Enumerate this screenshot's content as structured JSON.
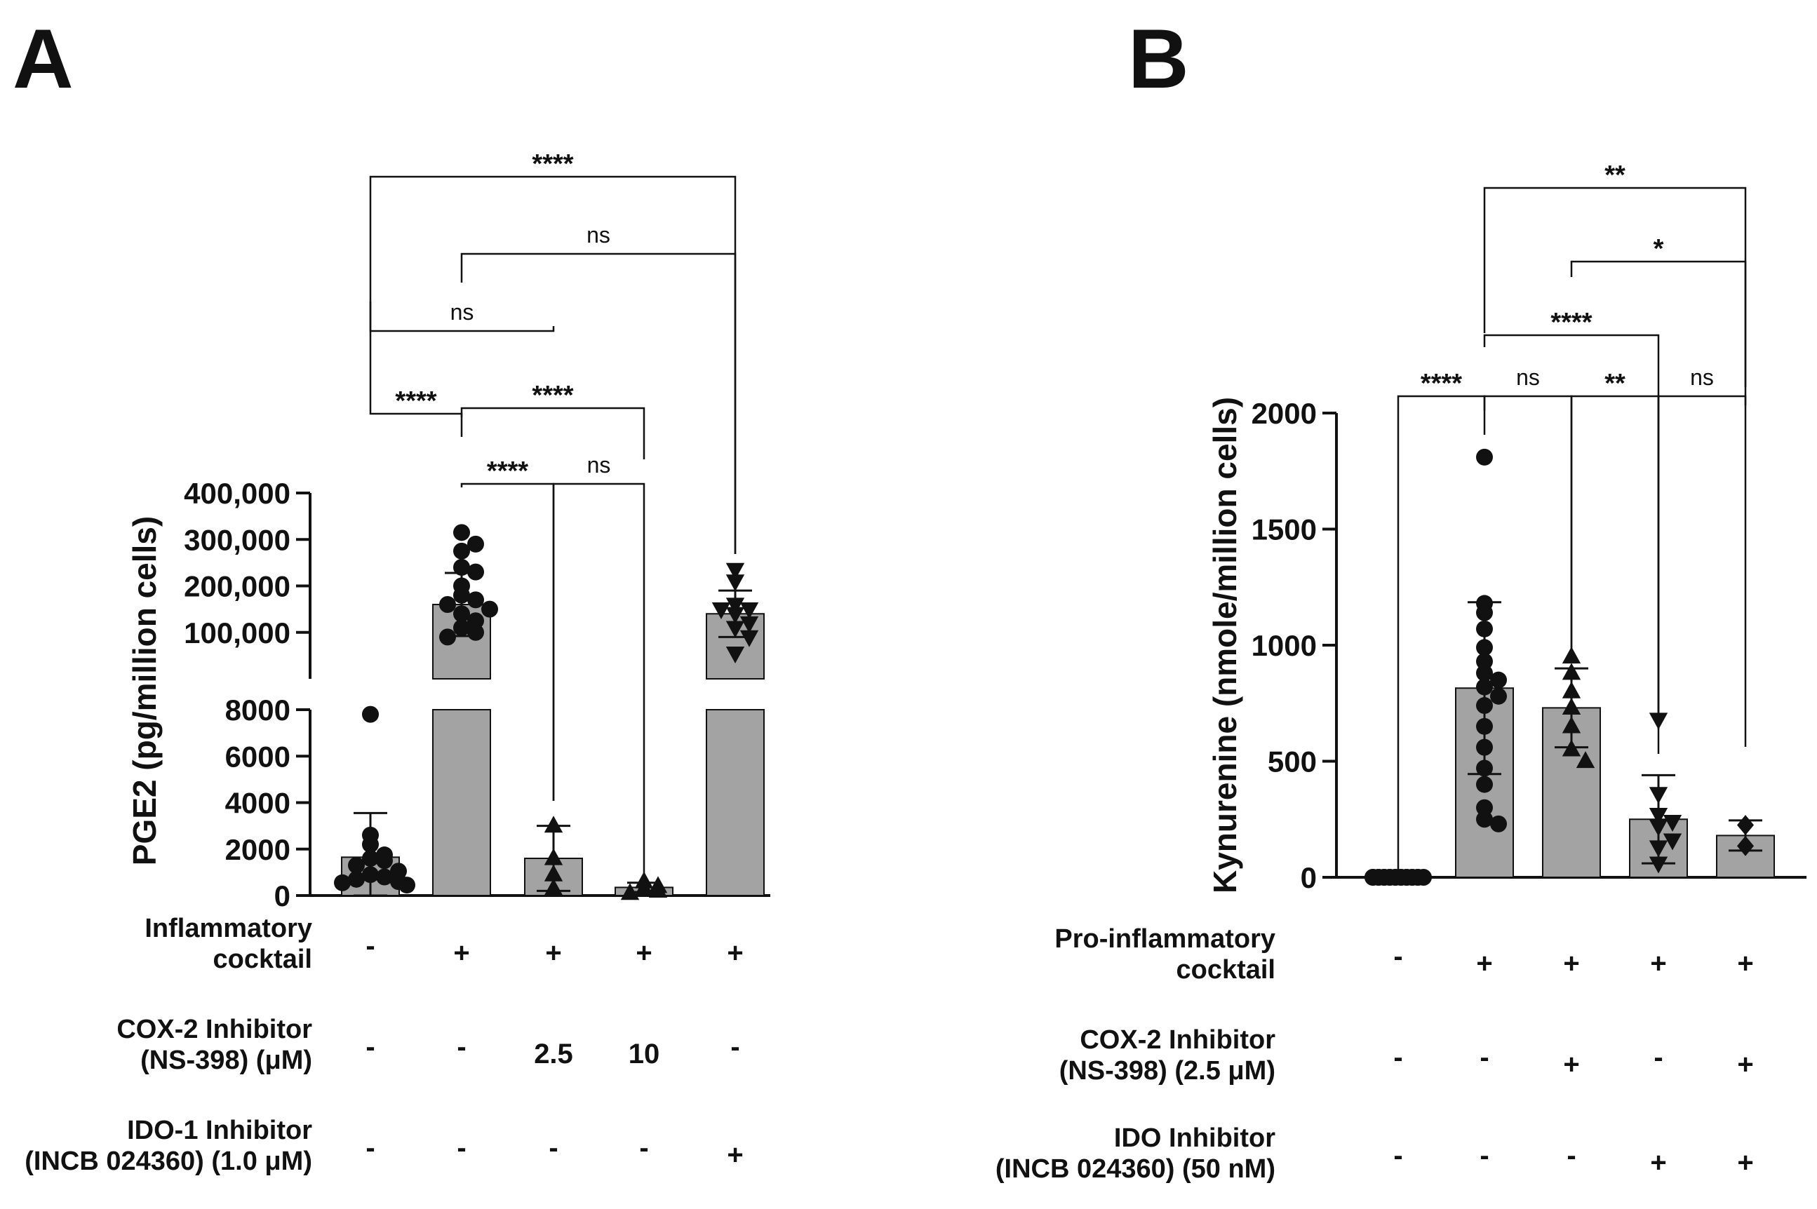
{
  "figure": {
    "colors": {
      "bar": "#a3a3a3",
      "ink": "#111111",
      "background": "#ffffff"
    }
  },
  "chart_data": [
    {
      "panel": "A",
      "type": "bar",
      "ylabel": "PGE2 (pg/million cells)",
      "y_axis_segments": [
        {
          "range": [
            0,
            8000
          ],
          "ticks": [
            0,
            2000,
            4000,
            6000,
            8000
          ],
          "tick_labels": [
            "0",
            "2000",
            "4000",
            "6000",
            "8000"
          ]
        },
        {
          "range": [
            0,
            400000
          ],
          "ticks": [
            100000,
            200000,
            300000,
            400000
          ],
          "tick_labels": [
            "100,000",
            "200,000",
            "300,000",
            "400,000"
          ]
        }
      ],
      "groups": [
        {
          "mean": 1650,
          "sd": 1900,
          "marker": "circle",
          "points": [
            7800,
            2600,
            2200,
            1750,
            1600,
            1500,
            1300,
            1050,
            900,
            800,
            700,
            600,
            550,
            450
          ]
        },
        {
          "mean": 160000,
          "sd": 68000,
          "marker": "circle",
          "points": [
            315000,
            290000,
            275000,
            240000,
            230000,
            200000,
            180000,
            170000,
            160000,
            150000,
            140000,
            125000,
            110000,
            100000,
            90000
          ]
        },
        {
          "mean": 1600,
          "sd": 1400,
          "marker": "triangle-up",
          "points": [
            3000,
            1600,
            900,
            300
          ]
        },
        {
          "mean": 350,
          "sd": 200,
          "marker": "triangle-up",
          "points": [
            600,
            400,
            300,
            200,
            100
          ]
        },
        {
          "mean": 140000,
          "sd": 50000,
          "marker": "triangle-down",
          "points": [
            235000,
            210000,
            160000,
            150000,
            150000,
            140000,
            120000,
            110000,
            90000,
            55000
          ]
        }
      ],
      "comparisons": [
        {
          "from": 1,
          "to": 2,
          "label": "****"
        },
        {
          "from": 2,
          "to": 3,
          "label": "****"
        },
        {
          "from": 3,
          "to": 4,
          "label": "ns"
        },
        {
          "from": 2,
          "to": 4,
          "label": "****"
        },
        {
          "from": 1,
          "to": 3,
          "label": "ns"
        },
        {
          "from": 2,
          "to": 5,
          "label": "ns"
        },
        {
          "from": 1,
          "to": 5,
          "label": "****"
        }
      ],
      "conditions": [
        {
          "label_lines": [
            "Inflammatory",
            "cocktail"
          ],
          "values": [
            "-",
            "+",
            "+",
            "+",
            "+"
          ]
        },
        {
          "label_lines": [
            "COX-2 Inhibitor",
            "(NS-398) (μM)"
          ],
          "values": [
            "-",
            "-",
            "2.5",
            "10",
            "-"
          ]
        },
        {
          "label_lines": [
            "IDO-1 Inhibitor",
            "(INCB 024360) (1.0 μM)"
          ],
          "values": [
            "-",
            "-",
            "-",
            "-",
            "+"
          ]
        }
      ]
    },
    {
      "panel": "B",
      "type": "bar",
      "ylabel": "Kynurenine (nmole/million cells)",
      "ylim": [
        0,
        2000
      ],
      "ticks": [
        0,
        500,
        1000,
        1500,
        2000
      ],
      "tick_labels": [
        "0",
        "500",
        "1000",
        "1500",
        "2000"
      ],
      "groups": [
        {
          "mean": 0,
          "sd": 0,
          "marker": "circle",
          "points": [
            0,
            0,
            0,
            0,
            0,
            0,
            0,
            0,
            0,
            0,
            0,
            0,
            0,
            0,
            0,
            0,
            0,
            0,
            0
          ]
        },
        {
          "mean": 815,
          "sd": 370,
          "marker": "circle",
          "points": [
            1810,
            1180,
            1140,
            1070,
            990,
            930,
            880,
            850,
            820,
            780,
            740,
            650,
            560,
            470,
            400,
            300,
            250,
            230
          ]
        },
        {
          "mean": 730,
          "sd": 170,
          "marker": "triangle-up",
          "points": [
            950,
            880,
            800,
            730,
            650,
            550,
            500
          ]
        },
        {
          "mean": 250,
          "sd": 190,
          "marker": "triangle-down",
          "points": [
            680,
            360,
            270,
            240,
            220,
            160,
            130,
            60
          ]
        },
        {
          "mean": 180,
          "sd": 65,
          "marker": "diamond",
          "points": [
            225,
            135
          ]
        }
      ],
      "comparisons": [
        {
          "from": 1,
          "to": 2,
          "label": "****"
        },
        {
          "from": 2,
          "to": 3,
          "label": "ns"
        },
        {
          "from": 3,
          "to": 4,
          "label": "**"
        },
        {
          "from": 4,
          "to": 5,
          "label": "ns"
        },
        {
          "from": 2,
          "to": 4,
          "label": "****"
        },
        {
          "from": 3,
          "to": 5,
          "label": "*"
        },
        {
          "from": 2,
          "to": 5,
          "label": "**"
        }
      ],
      "conditions": [
        {
          "label_lines": [
            "Pro-inflammatory",
            "cocktail"
          ],
          "values": [
            "-",
            "+",
            "+",
            "+",
            "+"
          ]
        },
        {
          "label_lines": [
            "COX-2  Inhibitor",
            "(NS-398) (2.5 μM)"
          ],
          "values": [
            "-",
            "-",
            "+",
            "-",
            "+"
          ]
        },
        {
          "label_lines": [
            "IDO Inhibitor",
            "(INCB 024360) (50 nM)"
          ],
          "values": [
            "-",
            "-",
            "-",
            "+",
            "+"
          ]
        }
      ]
    }
  ]
}
